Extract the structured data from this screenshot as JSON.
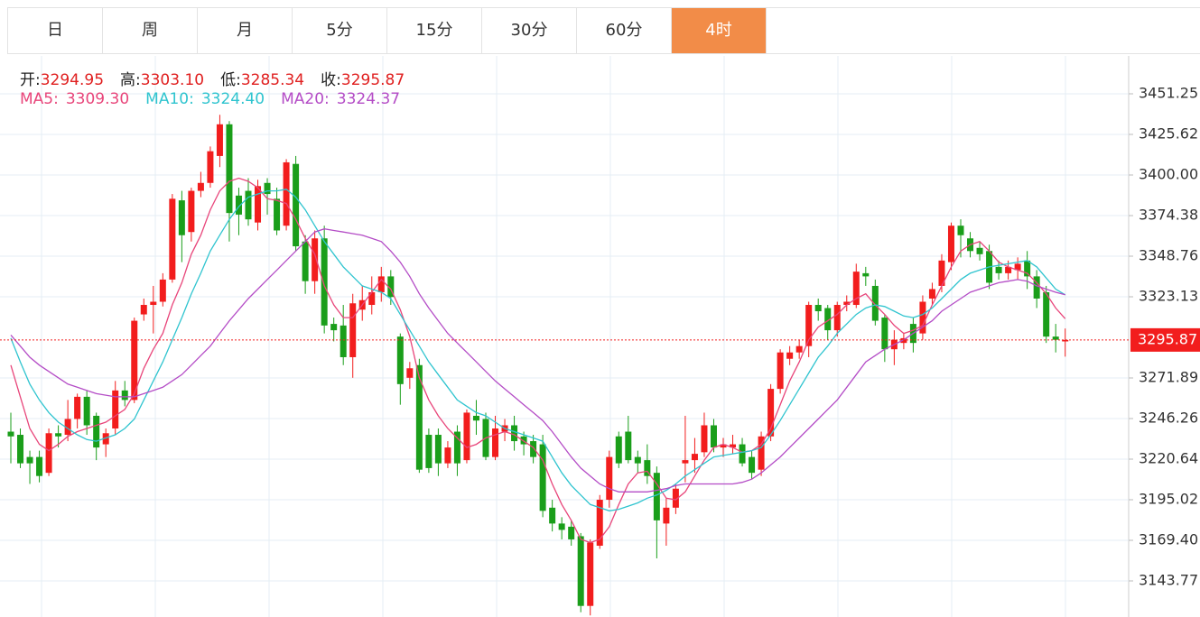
{
  "tabs": {
    "items": [
      "日",
      "周",
      "月",
      "5分",
      "15分",
      "30分",
      "60分",
      "4时"
    ],
    "active": 7
  },
  "chart_data": {
    "type": "candlestick",
    "ohlc_header": [
      {
        "label": "开:",
        "value": "3294.95"
      },
      {
        "label": "高:",
        "value": "3303.10"
      },
      {
        "label": "低:",
        "value": "3285.34"
      },
      {
        "label": "收:",
        "value": "3295.87"
      }
    ],
    "up_color": "#f21d1d",
    "down_color": "#1a9e1a",
    "grid": true,
    "grid_color": "#e4edf4",
    "ylim": [
      3121.0,
      3475.16
    ],
    "yticks": [
      3451.25,
      3425.62,
      {
        "value": 3400,
        "label": "3400.00"
      },
      3374.38,
      3348.76,
      3323.13,
      3271.89,
      3246.26,
      3220.64,
      3195.02,
      {
        "value": 3169.4,
        "label": "3169.40"
      },
      3143.77
    ],
    "current_price": 3295.87,
    "current_price_color": "#f21d1d",
    "candles": [
      {
        "open": 3238,
        "high": 3250,
        "low": 3218,
        "close": 3235
      },
      {
        "open": 3236,
        "high": 3240,
        "low": 3215,
        "close": 3218
      },
      {
        "open": 3222,
        "high": 3226,
        "low": 3205,
        "close": 3218
      },
      {
        "open": 3222,
        "high": 3226,
        "low": 3206,
        "close": 3210
      },
      {
        "open": 3212,
        "high": 3240,
        "low": 3210,
        "close": 3237
      },
      {
        "open": 3237,
        "high": 3242,
        "low": 3228,
        "close": 3235
      },
      {
        "open": 3236,
        "high": 3258,
        "low": 3232,
        "close": 3246
      },
      {
        "open": 3246,
        "high": 3262,
        "low": 3240,
        "close": 3260
      },
      {
        "open": 3260,
        "high": 3264,
        "low": 3236,
        "close": 3242
      },
      {
        "open": 3248,
        "high": 3250,
        "low": 3220,
        "close": 3228
      },
      {
        "open": 3230,
        "high": 3240,
        "low": 3222,
        "close": 3237
      },
      {
        "open": 3240,
        "high": 3270,
        "low": 3236,
        "close": 3264
      },
      {
        "open": 3264,
        "high": 3270,
        "low": 3254,
        "close": 3258
      },
      {
        "open": 3258,
        "high": 3310,
        "low": 3256,
        "close": 3308
      },
      {
        "open": 3312,
        "high": 3322,
        "low": 3308,
        "close": 3318
      },
      {
        "open": 3318,
        "high": 3330,
        "low": 3300,
        "close": 3320
      },
      {
        "open": 3320,
        "high": 3338,
        "low": 3317,
        "close": 3334
      },
      {
        "open": 3334,
        "high": 3388,
        "low": 3332,
        "close": 3385
      },
      {
        "open": 3384,
        "high": 3390,
        "low": 3345,
        "close": 3362
      },
      {
        "open": 3364,
        "high": 3392,
        "low": 3358,
        "close": 3390
      },
      {
        "open": 3390,
        "high": 3402,
        "low": 3386,
        "close": 3395
      },
      {
        "open": 3395,
        "high": 3418,
        "low": 3392,
        "close": 3415
      },
      {
        "open": 3412,
        "high": 3438,
        "low": 3405,
        "close": 3432
      },
      {
        "open": 3432,
        "high": 3434,
        "low": 3358,
        "close": 3376
      },
      {
        "open": 3387,
        "high": 3392,
        "low": 3362,
        "close": 3375
      },
      {
        "open": 3390,
        "high": 3398,
        "low": 3368,
        "close": 3372
      },
      {
        "open": 3370,
        "high": 3397,
        "low": 3365,
        "close": 3393
      },
      {
        "open": 3395,
        "high": 3398,
        "low": 3375,
        "close": 3388
      },
      {
        "open": 3385,
        "high": 3392,
        "low": 3362,
        "close": 3365
      },
      {
        "open": 3368,
        "high": 3410,
        "low": 3365,
        "close": 3408
      },
      {
        "open": 3407,
        "high": 3412,
        "low": 3352,
        "close": 3355
      },
      {
        "open": 3358,
        "high": 3362,
        "low": 3325,
        "close": 3333
      },
      {
        "open": 3333,
        "high": 3365,
        "low": 3325,
        "close": 3360
      },
      {
        "open": 3360,
        "high": 3368,
        "low": 3300,
        "close": 3305
      },
      {
        "open": 3306,
        "high": 3310,
        "low": 3295,
        "close": 3302
      },
      {
        "open": 3305,
        "high": 3318,
        "low": 3280,
        "close": 3285
      },
      {
        "open": 3285,
        "high": 3325,
        "low": 3272,
        "close": 3319
      },
      {
        "open": 3315,
        "high": 3330,
        "low": 3308,
        "close": 3321
      },
      {
        "open": 3318,
        "high": 3336,
        "low": 3312,
        "close": 3326
      },
      {
        "open": 3326,
        "high": 3342,
        "low": 3320,
        "close": 3336
      },
      {
        "open": 3336,
        "high": 3340,
        "low": 3318,
        "close": 3323
      },
      {
        "open": 3298,
        "high": 3300,
        "low": 3255,
        "close": 3268
      },
      {
        "open": 3272,
        "high": 3282,
        "low": 3265,
        "close": 3278
      },
      {
        "open": 3280,
        "high": 3284,
        "low": 3212,
        "close": 3214
      },
      {
        "open": 3236,
        "high": 3240,
        "low": 3212,
        "close": 3215
      },
      {
        "open": 3236,
        "high": 3240,
        "low": 3210,
        "close": 3218
      },
      {
        "open": 3218,
        "high": 3232,
        "low": 3215,
        "close": 3228
      },
      {
        "open": 3238,
        "high": 3242,
        "low": 3210,
        "close": 3218
      },
      {
        "open": 3220,
        "high": 3252,
        "low": 3218,
        "close": 3250
      },
      {
        "open": 3248,
        "high": 3258,
        "low": 3236,
        "close": 3245
      },
      {
        "open": 3246,
        "high": 3250,
        "low": 3220,
        "close": 3222
      },
      {
        "open": 3222,
        "high": 3248,
        "low": 3220,
        "close": 3240
      },
      {
        "open": 3238,
        "high": 3246,
        "low": 3232,
        "close": 3242
      },
      {
        "open": 3242,
        "high": 3248,
        "low": 3226,
        "close": 3232
      },
      {
        "open": 3235,
        "high": 3238,
        "low": 3223,
        "close": 3230
      },
      {
        "open": 3232,
        "high": 3236,
        "low": 3218,
        "close": 3222
      },
      {
        "open": 3230,
        "high": 3236,
        "low": 3184,
        "close": 3188
      },
      {
        "open": 3190,
        "high": 3195,
        "low": 3175,
        "close": 3180
      },
      {
        "open": 3180,
        "high": 3184,
        "low": 3170,
        "close": 3176
      },
      {
        "open": 3178,
        "high": 3182,
        "low": 3166,
        "close": 3170
      },
      {
        "open": 3172,
        "high": 3174,
        "low": 3124,
        "close": 3128
      },
      {
        "open": 3128,
        "high": 3170,
        "low": 3122,
        "close": 3168
      },
      {
        "open": 3166,
        "high": 3198,
        "low": 3164,
        "close": 3195
      },
      {
        "open": 3195,
        "high": 3226,
        "low": 3190,
        "close": 3222
      },
      {
        "open": 3235,
        "high": 3238,
        "low": 3215,
        "close": 3218
      },
      {
        "open": 3238,
        "high": 3248,
        "low": 3218,
        "close": 3220
      },
      {
        "open": 3222,
        "high": 3226,
        "low": 3212,
        "close": 3218
      },
      {
        "open": 3220,
        "high": 3230,
        "low": 3205,
        "close": 3210
      },
      {
        "open": 3212,
        "high": 3216,
        "low": 3158,
        "close": 3182
      },
      {
        "open": 3180,
        "high": 3196,
        "low": 3166,
        "close": 3190
      },
      {
        "open": 3190,
        "high": 3205,
        "low": 3186,
        "close": 3202
      },
      {
        "open": 3218,
        "high": 3248,
        "low": 3206,
        "close": 3220
      },
      {
        "open": 3220,
        "high": 3234,
        "low": 3212,
        "close": 3224
      },
      {
        "open": 3225,
        "high": 3250,
        "low": 3222,
        "close": 3242
      },
      {
        "open": 3242,
        "high": 3246,
        "low": 3225,
        "close": 3228
      },
      {
        "open": 3228,
        "high": 3234,
        "low": 3222,
        "close": 3230
      },
      {
        "open": 3228,
        "high": 3236,
        "low": 3224,
        "close": 3230
      },
      {
        "open": 3230,
        "high": 3234,
        "low": 3216,
        "close": 3218
      },
      {
        "open": 3222,
        "high": 3226,
        "low": 3208,
        "close": 3212
      },
      {
        "open": 3214,
        "high": 3238,
        "low": 3210,
        "close": 3235
      },
      {
        "open": 3235,
        "high": 3268,
        "low": 3232,
        "close": 3265
      },
      {
        "open": 3265,
        "high": 3290,
        "low": 3262,
        "close": 3288
      },
      {
        "open": 3284,
        "high": 3292,
        "low": 3280,
        "close": 3288
      },
      {
        "open": 3288,
        "high": 3296,
        "low": 3284,
        "close": 3292
      },
      {
        "open": 3292,
        "high": 3320,
        "low": 3285,
        "close": 3318
      },
      {
        "open": 3318,
        "high": 3322,
        "low": 3308,
        "close": 3314
      },
      {
        "open": 3316,
        "high": 3318,
        "low": 3296,
        "close": 3302
      },
      {
        "open": 3302,
        "high": 3320,
        "low": 3298,
        "close": 3318
      },
      {
        "open": 3318,
        "high": 3324,
        "low": 3314,
        "close": 3320
      },
      {
        "open": 3318,
        "high": 3344,
        "low": 3316,
        "close": 3339
      },
      {
        "open": 3338,
        "high": 3342,
        "low": 3330,
        "close": 3336
      },
      {
        "open": 3330,
        "high": 3334,
        "low": 3305,
        "close": 3308
      },
      {
        "open": 3310,
        "high": 3312,
        "low": 3282,
        "close": 3290
      },
      {
        "open": 3290,
        "high": 3302,
        "low": 3280,
        "close": 3296
      },
      {
        "open": 3294,
        "high": 3300,
        "low": 3290,
        "close": 3297
      },
      {
        "open": 3306,
        "high": 3310,
        "low": 3288,
        "close": 3294
      },
      {
        "open": 3300,
        "high": 3324,
        "low": 3296,
        "close": 3320
      },
      {
        "open": 3322,
        "high": 3332,
        "low": 3318,
        "close": 3328
      },
      {
        "open": 3330,
        "high": 3350,
        "low": 3326,
        "close": 3346
      },
      {
        "open": 3345,
        "high": 3370,
        "low": 3340,
        "close": 3368
      },
      {
        "open": 3368,
        "high": 3372,
        "low": 3348,
        "close": 3362
      },
      {
        "open": 3360,
        "high": 3364,
        "low": 3348,
        "close": 3352
      },
      {
        "open": 3354,
        "high": 3358,
        "low": 3346,
        "close": 3350
      },
      {
        "open": 3352,
        "high": 3356,
        "low": 3328,
        "close": 3332
      },
      {
        "open": 3342,
        "high": 3346,
        "low": 3334,
        "close": 3338
      },
      {
        "open": 3338,
        "high": 3346,
        "low": 3334,
        "close": 3342
      },
      {
        "open": 3340,
        "high": 3348,
        "low": 3334,
        "close": 3344
      },
      {
        "open": 3346,
        "high": 3352,
        "low": 3328,
        "close": 3336
      },
      {
        "open": 3336,
        "high": 3340,
        "low": 3316,
        "close": 3322
      },
      {
        "open": 3326,
        "high": 3330,
        "low": 3294,
        "close": 3298
      },
      {
        "open": 3298,
        "high": 3306,
        "low": 3288,
        "close": 3296
      },
      {
        "open": 3294.95,
        "high": 3303.1,
        "low": 3285.34,
        "close": 3295.87
      }
    ],
    "series": [
      {
        "name": "MA5:",
        "value_label": "3309.30",
        "color": "#e8457a",
        "values": [
          3280,
          3260,
          3240,
          3230,
          3226,
          3230,
          3235,
          3238,
          3240,
          3242,
          3244,
          3248,
          3252,
          3262,
          3278,
          3290,
          3300,
          3318,
          3332,
          3350,
          3362,
          3378,
          3390,
          3396,
          3398,
          3396,
          3392,
          3385,
          3384,
          3382,
          3372,
          3360,
          3350,
          3330,
          3318,
          3310,
          3310,
          3318,
          3326,
          3334,
          3328,
          3315,
          3298,
          3272,
          3258,
          3248,
          3240,
          3234,
          3228,
          3230,
          3234,
          3236,
          3238,
          3236,
          3232,
          3228,
          3220,
          3205,
          3192,
          3182,
          3170,
          3168,
          3170,
          3178,
          3192,
          3205,
          3212,
          3213,
          3205,
          3196,
          3195,
          3200,
          3210,
          3220,
          3228,
          3230,
          3228,
          3225,
          3226,
          3230,
          3240,
          3255,
          3270,
          3282,
          3296,
          3304,
          3308,
          3312,
          3318,
          3322,
          3325,
          3318,
          3312,
          3305,
          3300,
          3302,
          3305,
          3318,
          3330,
          3342,
          3352,
          3356,
          3358,
          3352,
          3345,
          3342,
          3340,
          3338,
          3332,
          3325,
          3316,
          3309.3
        ]
      },
      {
        "name": "MA10:",
        "value_label": "3324.40",
        "color": "#2fc4cf",
        "values": [
          3297,
          3282,
          3268,
          3258,
          3250,
          3244,
          3240,
          3236,
          3233,
          3232,
          3234,
          3236,
          3240,
          3246,
          3258,
          3270,
          3282,
          3296,
          3310,
          3325,
          3338,
          3352,
          3362,
          3372,
          3380,
          3386,
          3388,
          3390,
          3390,
          3391,
          3386,
          3378,
          3368,
          3358,
          3350,
          3342,
          3336,
          3330,
          3328,
          3326,
          3322,
          3312,
          3302,
          3292,
          3282,
          3274,
          3266,
          3258,
          3254,
          3250,
          3248,
          3244,
          3240,
          3238,
          3236,
          3234,
          3232,
          3222,
          3212,
          3204,
          3198,
          3192,
          3190,
          3188,
          3189,
          3191,
          3193,
          3196,
          3198,
          3201,
          3205,
          3210,
          3214,
          3218,
          3222,
          3223,
          3224,
          3225,
          3226,
          3228,
          3236,
          3245,
          3255,
          3265,
          3275,
          3285,
          3292,
          3300,
          3306,
          3312,
          3316,
          3318,
          3317,
          3314,
          3311,
          3310,
          3312,
          3316,
          3322,
          3328,
          3334,
          3338,
          3340,
          3342,
          3343,
          3344,
          3345,
          3346,
          3342,
          3335,
          3328,
          3324.4
        ]
      },
      {
        "name": "MA20:",
        "value_label": "3324.37",
        "color": "#b44cc6",
        "values": [
          3299,
          3292,
          3285,
          3280,
          3276,
          3272,
          3268,
          3266,
          3264,
          3262,
          3261,
          3260,
          3260,
          3260,
          3262,
          3264,
          3266,
          3270,
          3274,
          3280,
          3286,
          3292,
          3300,
          3308,
          3315,
          3322,
          3328,
          3334,
          3340,
          3346,
          3352,
          3358,
          3364,
          3366,
          3365,
          3364,
          3363,
          3362,
          3360,
          3358,
          3352,
          3345,
          3336,
          3325,
          3316,
          3308,
          3300,
          3294,
          3288,
          3282,
          3276,
          3270,
          3265,
          3260,
          3255,
          3250,
          3245,
          3238,
          3230,
          3222,
          3215,
          3210,
          3205,
          3202,
          3200,
          3200,
          3200,
          3200,
          3201,
          3202,
          3204,
          3205,
          3205,
          3205,
          3205,
          3205,
          3205,
          3206,
          3208,
          3212,
          3217,
          3222,
          3228,
          3234,
          3240,
          3246,
          3252,
          3258,
          3266,
          3274,
          3282,
          3286,
          3290,
          3293,
          3296,
          3300,
          3304,
          3308,
          3314,
          3318,
          3322,
          3326,
          3328,
          3330,
          3332,
          3333,
          3334,
          3333,
          3330,
          3328,
          3326,
          3324.37
        ]
      }
    ]
  }
}
